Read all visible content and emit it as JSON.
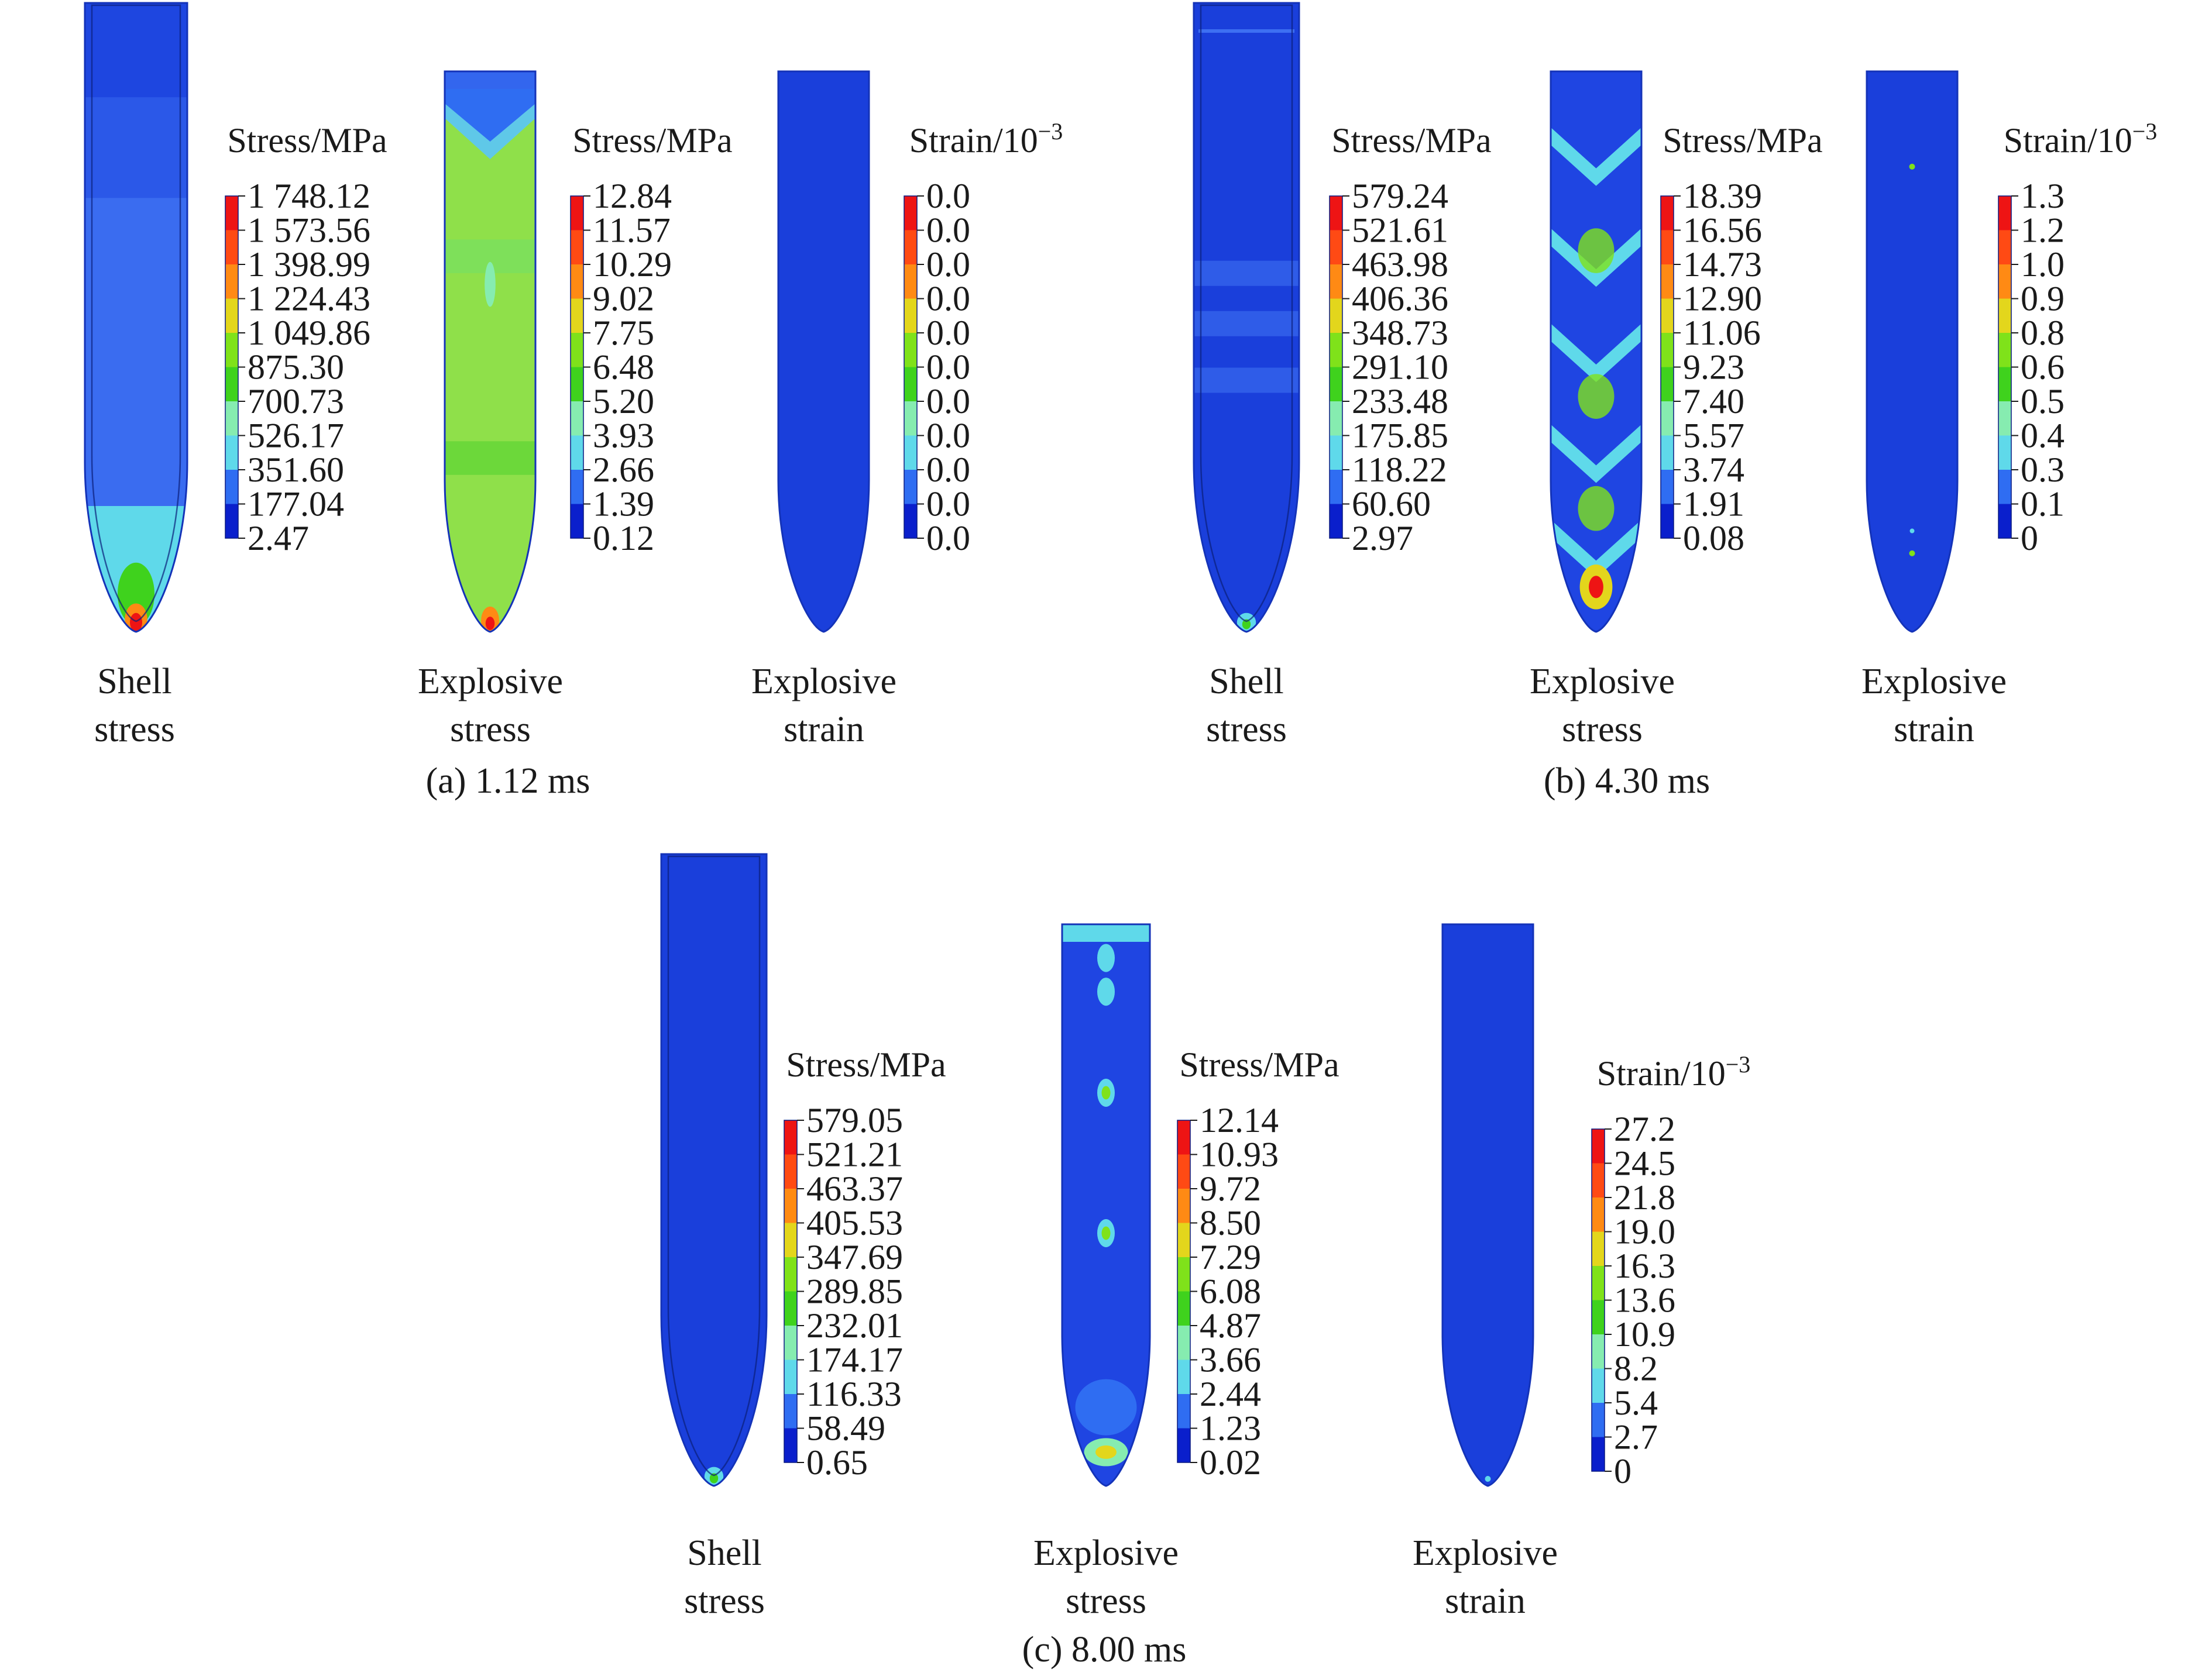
{
  "palette": [
    "#0a1fcc",
    "#2f6df2",
    "#5fd9ea",
    "#86ecb0",
    "#3fd21d",
    "#7fe21a",
    "#e3d61c",
    "#ff8a14",
    "#ff4a14",
    "#ee1414"
  ],
  "groups": [
    {
      "label": "(a) 1.12 ms",
      "panels": [
        {
          "id": "a1",
          "type": "shell",
          "caption": [
            "Shell",
            "stress"
          ],
          "legend_title": "Stress/MPa",
          "ticks": [
            "1 748.12",
            "1 573.56",
            "1 398.99",
            "1 224.43",
            "1 049.86",
            "875.30",
            "700.73",
            "526.17",
            "351.60",
            "177.04",
            "2.47"
          ]
        },
        {
          "id": "a2",
          "type": "explosive",
          "caption": [
            "Explosive",
            "stress"
          ],
          "legend_title": "Stress/MPa",
          "ticks": [
            "12.84",
            "11.57",
            "10.29",
            "9.02",
            "7.75",
            "6.48",
            "5.20",
            "3.93",
            "2.66",
            "1.39",
            "0.12"
          ]
        },
        {
          "id": "a3",
          "type": "explosive",
          "caption": [
            "Explosive",
            "strain"
          ],
          "legend_title": "Strain/10",
          "legend_title_sup": "−3",
          "ticks": [
            "0.0",
            "0.0",
            "0.0",
            "0.0",
            "0.0",
            "0.0",
            "0.0",
            "0.0",
            "0.0",
            "0.0",
            "0.0"
          ]
        }
      ]
    },
    {
      "label": "(b) 4.30 ms",
      "panels": [
        {
          "id": "b1",
          "type": "shell",
          "caption": [
            "Shell",
            "stress"
          ],
          "legend_title": "Stress/MPa",
          "ticks": [
            "579.24",
            "521.61",
            "463.98",
            "406.36",
            "348.73",
            "291.10",
            "233.48",
            "175.85",
            "118.22",
            "60.60",
            "2.97"
          ]
        },
        {
          "id": "b2",
          "type": "explosive",
          "caption": [
            "Explosive",
            "stress"
          ],
          "legend_title": "Stress/MPa",
          "ticks": [
            "18.39",
            "16.56",
            "14.73",
            "12.90",
            "11.06",
            "9.23",
            "7.40",
            "5.57",
            "3.74",
            "1.91",
            "0.08"
          ]
        },
        {
          "id": "b3",
          "type": "explosive",
          "caption": [
            "Explosive",
            "strain"
          ],
          "legend_title": "Strain/10",
          "legend_title_sup": "−3",
          "ticks": [
            "1.3",
            "1.2",
            "1.0",
            "0.9",
            "0.8",
            "0.6",
            "0.5",
            "0.4",
            "0.3",
            "0.1",
            "0"
          ]
        }
      ]
    },
    {
      "label": "(c) 8.00 ms",
      "panels": [
        {
          "id": "c1",
          "type": "shell",
          "caption": [
            "Shell",
            "stress"
          ],
          "legend_title": "Stress/MPa",
          "ticks": [
            "579.05",
            "521.21",
            "463.37",
            "405.53",
            "347.69",
            "289.85",
            "232.01",
            "174.17",
            "116.33",
            "58.49",
            "0.65"
          ]
        },
        {
          "id": "c2",
          "type": "explosive",
          "caption": [
            "Explosive",
            "stress"
          ],
          "legend_title": "Stress/MPa",
          "ticks": [
            "12.14",
            "10.93",
            "9.72",
            "8.50",
            "7.29",
            "6.08",
            "4.87",
            "3.66",
            "2.44",
            "1.23",
            "0.02"
          ]
        },
        {
          "id": "c3",
          "type": "explosive",
          "caption": [
            "Explosive",
            "strain"
          ],
          "legend_title": "Strain/10",
          "legend_title_sup": "−3",
          "ticks": [
            "27.2",
            "24.5",
            "21.8",
            "19.0",
            "16.3",
            "13.6",
            "10.9",
            "8.2",
            "5.4",
            "2.7",
            "0"
          ]
        }
      ]
    }
  ]
}
